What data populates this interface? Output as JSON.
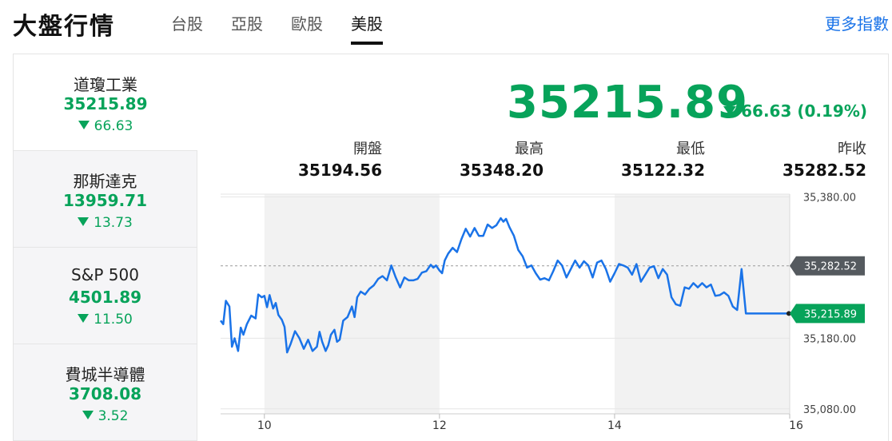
{
  "header": {
    "title": "大盤行情",
    "tabs": [
      "台股",
      "亞股",
      "歐股",
      "美股"
    ],
    "active_tab": "美股",
    "more_link": "更多指數"
  },
  "indices": [
    {
      "name": "道瓊工業",
      "value": "35215.89",
      "change": "66.63"
    },
    {
      "name": "那斯達克",
      "value": "13959.71",
      "change": "13.73"
    },
    {
      "name": "S&P 500",
      "value": "4501.89",
      "change": "11.50"
    },
    {
      "name": "費城半導體",
      "value": "3708.08",
      "change": "3.52"
    }
  ],
  "main": {
    "price": "35215.89",
    "change": "66.63 (0.19%)",
    "stats": [
      {
        "label": "開盤",
        "value": "35194.56"
      },
      {
        "label": "最高",
        "value": "35348.20"
      },
      {
        "label": "最低",
        "value": "35122.32"
      },
      {
        "label": "昨收",
        "value": "35282.52"
      }
    ]
  },
  "colors": {
    "down_green": "#07a35a",
    "line_blue": "#1a73e8",
    "link_blue": "#1a73e8",
    "prev_close_tag": "#555a5f"
  },
  "chart_data": {
    "type": "line",
    "x_tick_labels": [
      "10",
      "12",
      "14",
      "16"
    ],
    "x_ticks": [
      10,
      12,
      14,
      16
    ],
    "x_range": [
      9.5,
      16
    ],
    "y_tick_labels": [
      "35,380.00",
      "35,180.00",
      "35,080.00"
    ],
    "y_ticks": [
      35380,
      35180,
      35080
    ],
    "y_range": [
      35073,
      35384
    ],
    "prev_close": 35282.52,
    "prev_close_label": "35,282.52",
    "last_label": "35,215.89",
    "shaded_ranges": [
      [
        10,
        12
      ],
      [
        14,
        16
      ]
    ],
    "series": [
      {
        "x": [
          9.5,
          9.53,
          9.56,
          9.6,
          9.63,
          9.66,
          9.7,
          9.73,
          9.76,
          9.8,
          9.85,
          9.9,
          9.93,
          9.97,
          10.0,
          10.03,
          10.06,
          10.1,
          10.13,
          10.16,
          10.2,
          10.23,
          10.26,
          10.3,
          10.35,
          10.4,
          10.45,
          10.5,
          10.55,
          10.6,
          10.63,
          10.66,
          10.7,
          10.73,
          10.76,
          10.8,
          10.83,
          10.86,
          10.9,
          10.95,
          11.0,
          11.03,
          11.06,
          11.1,
          11.15,
          11.2,
          11.25,
          11.3,
          11.35,
          11.4,
          11.45,
          11.5,
          11.55,
          11.6,
          11.65,
          11.7,
          11.75,
          11.8,
          11.85,
          11.9,
          11.93,
          11.96,
          12.0,
          12.03,
          12.06,
          12.1,
          12.15,
          12.2,
          12.25,
          12.3,
          12.35,
          12.4,
          12.45,
          12.5,
          12.55,
          12.6,
          12.65,
          12.7,
          12.73,
          12.76,
          12.8,
          12.85,
          12.9,
          12.95,
          13.0,
          13.05,
          13.1,
          13.15,
          13.2,
          13.25,
          13.3,
          13.35,
          13.4,
          13.45,
          13.5,
          13.55,
          13.6,
          13.65,
          13.7,
          13.75,
          13.8,
          13.85,
          13.9,
          13.95,
          14.0,
          14.05,
          14.1,
          14.15,
          14.2,
          14.25,
          14.3,
          14.35,
          14.4,
          14.45,
          14.5,
          14.55,
          14.6,
          14.65,
          14.7,
          14.75,
          14.8,
          14.85,
          14.9,
          14.95,
          15.0,
          15.05,
          15.1,
          15.15,
          15.2,
          15.25,
          15.3,
          15.35,
          15.4,
          15.45,
          15.5,
          15.55,
          15.6,
          15.65,
          15.7,
          15.75,
          15.8,
          15.85,
          15.9,
          15.93,
          15.96,
          15.99
        ],
        "y": [
          35205,
          35200,
          35233,
          35225,
          35168,
          35180,
          35162,
          35195,
          35185,
          35200,
          35212,
          35208,
          35242,
          35238,
          35240,
          35224,
          35241,
          35222,
          35230,
          35213,
          35206,
          35196,
          35160,
          35172,
          35190,
          35180,
          35165,
          35178,
          35162,
          35168,
          35189,
          35175,
          35162,
          35170,
          35185,
          35192,
          35175,
          35178,
          35205,
          35210,
          35225,
          35210,
          35238,
          35246,
          35242,
          35250,
          35255,
          35264,
          35268,
          35262,
          35283,
          35266,
          35252,
          35266,
          35262,
          35262,
          35264,
          35273,
          35275,
          35284,
          35280,
          35283,
          35276,
          35272,
          35290,
          35300,
          35308,
          35302,
          35320,
          35335,
          35324,
          35336,
          35325,
          35325,
          35341,
          35336,
          35340,
          35350,
          35345,
          35349,
          35337,
          35325,
          35305,
          35296,
          35280,
          35283,
          35272,
          35263,
          35265,
          35262,
          35275,
          35290,
          35283,
          35266,
          35278,
          35290,
          35280,
          35289,
          35283,
          35266,
          35287,
          35290,
          35278,
          35260,
          35272,
          35285,
          35283,
          35280,
          35270,
          35285,
          35260,
          35270,
          35280,
          35282,
          35265,
          35278,
          35270,
          35238,
          35228,
          35226,
          35252,
          35250,
          35258,
          35252,
          35258,
          35252,
          35256,
          35240,
          35241,
          35245,
          35240,
          35225,
          35220,
          35278,
          35215,
          35215,
          35215,
          35215,
          35215,
          35215,
          35215,
          35215,
          35215,
          35215,
          35215,
          35215
        ]
      }
    ]
  }
}
